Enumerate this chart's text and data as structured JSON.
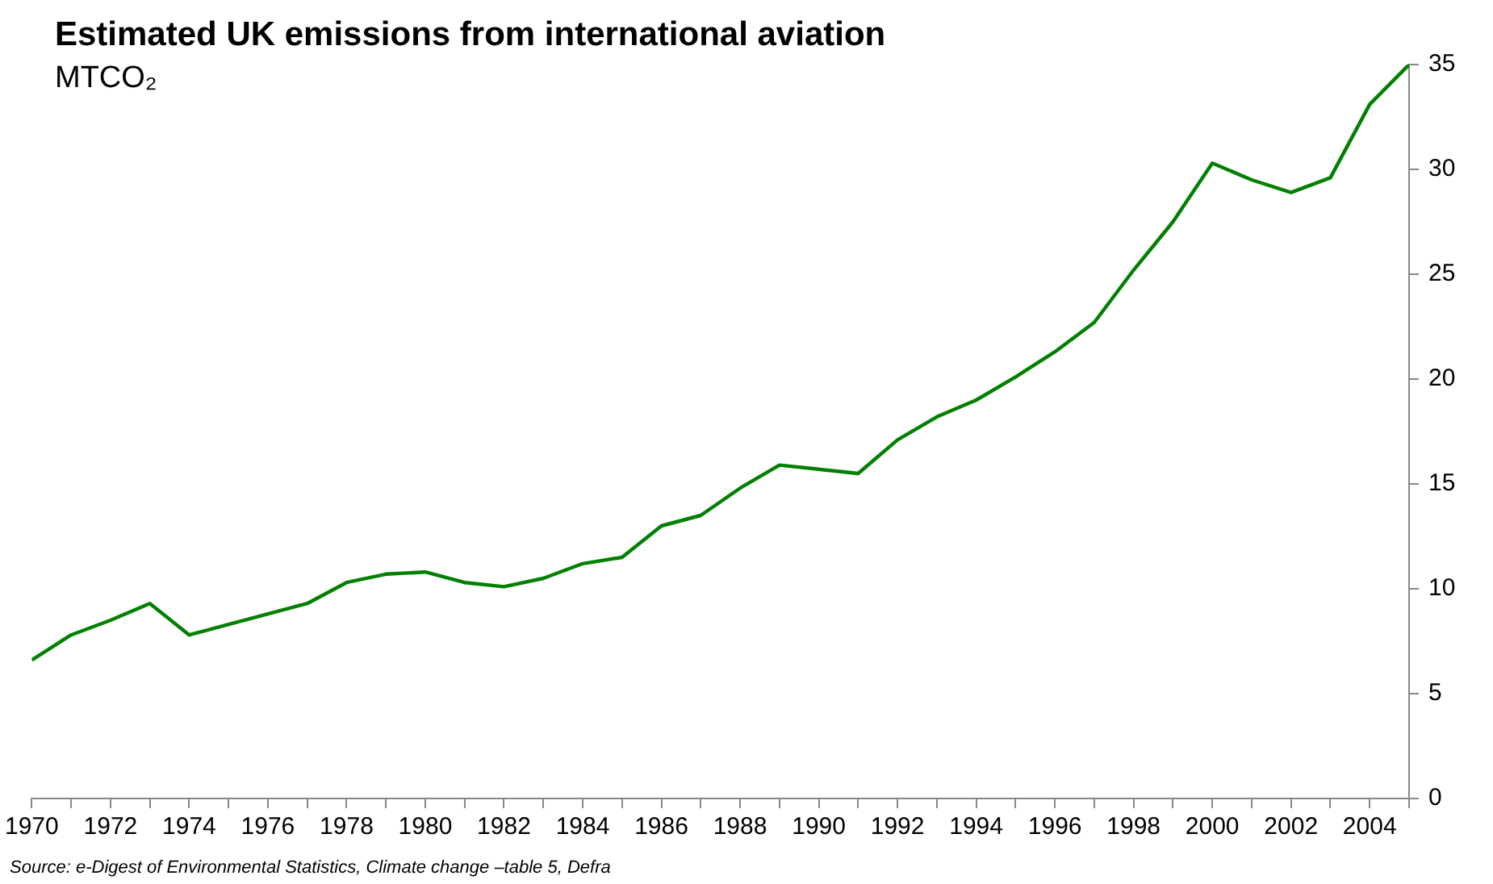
{
  "chart_data": {
    "type": "line",
    "title": "Estimated UK emissions from international aviation",
    "subtitle": "MTCO₂",
    "annotations": [
      "Source: e-Digest of Environmental Statistics, Climate change –table 5, Defra"
    ],
    "x": [
      1970,
      1971,
      1972,
      1973,
      1974,
      1975,
      1976,
      1977,
      1978,
      1979,
      1980,
      1981,
      1982,
      1983,
      1984,
      1985,
      1986,
      1987,
      1988,
      1989,
      1990,
      1991,
      1992,
      1993,
      1994,
      1995,
      1996,
      1997,
      1998,
      1999,
      2000,
      2001,
      2002,
      2003,
      2004,
      2005
    ],
    "series": [
      {
        "color": "#008000",
        "values": [
          6.6,
          7.8,
          8.5,
          9.3,
          7.8,
          8.3,
          8.8,
          9.3,
          10.3,
          10.7,
          10.8,
          10.3,
          10.1,
          10.5,
          11.2,
          11.5,
          13.0,
          13.5,
          14.8,
          15.9,
          15.7,
          15.5,
          17.1,
          18.2,
          19.0,
          20.1,
          21.3,
          22.7,
          25.2,
          27.5,
          30.3,
          29.5,
          28.9,
          29.6,
          33.1,
          35.0
        ]
      }
    ],
    "xlim": [
      1970,
      2005
    ],
    "xticks": [
      1970,
      {
        "value": 1971,
        "label": null
      },
      1972,
      {
        "value": 1973,
        "label": null
      },
      1974,
      {
        "value": 1975,
        "label": null
      },
      1976,
      {
        "value": 1977,
        "label": null
      },
      1978,
      {
        "value": 1979,
        "label": null
      },
      1980,
      {
        "value": 1981,
        "label": null
      },
      1982,
      {
        "value": 1983,
        "label": null
      },
      1984,
      {
        "value": 1985,
        "label": null
      },
      1986,
      {
        "value": 1987,
        "label": null
      },
      1988,
      {
        "value": 1989,
        "label": null
      },
      1990,
      {
        "value": 1991,
        "label": null
      },
      1992,
      {
        "value": 1993,
        "label": null
      },
      1994,
      {
        "value": 1995,
        "label": null
      },
      1996,
      {
        "value": 1997,
        "label": null
      },
      1998,
      {
        "value": 1999,
        "label": null
      },
      2000,
      {
        "value": 2001,
        "label": null
      },
      2002,
      {
        "value": 2003,
        "label": null
      },
      2004,
      {
        "value": 2005,
        "label": null
      }
    ],
    "ylim": [
      0,
      35
    ],
    "yticks": [
      0,
      5,
      10,
      15,
      20,
      25,
      30,
      35
    ],
    "grid": false,
    "legend": false,
    "marker": "none",
    "line_style": "solid"
  }
}
